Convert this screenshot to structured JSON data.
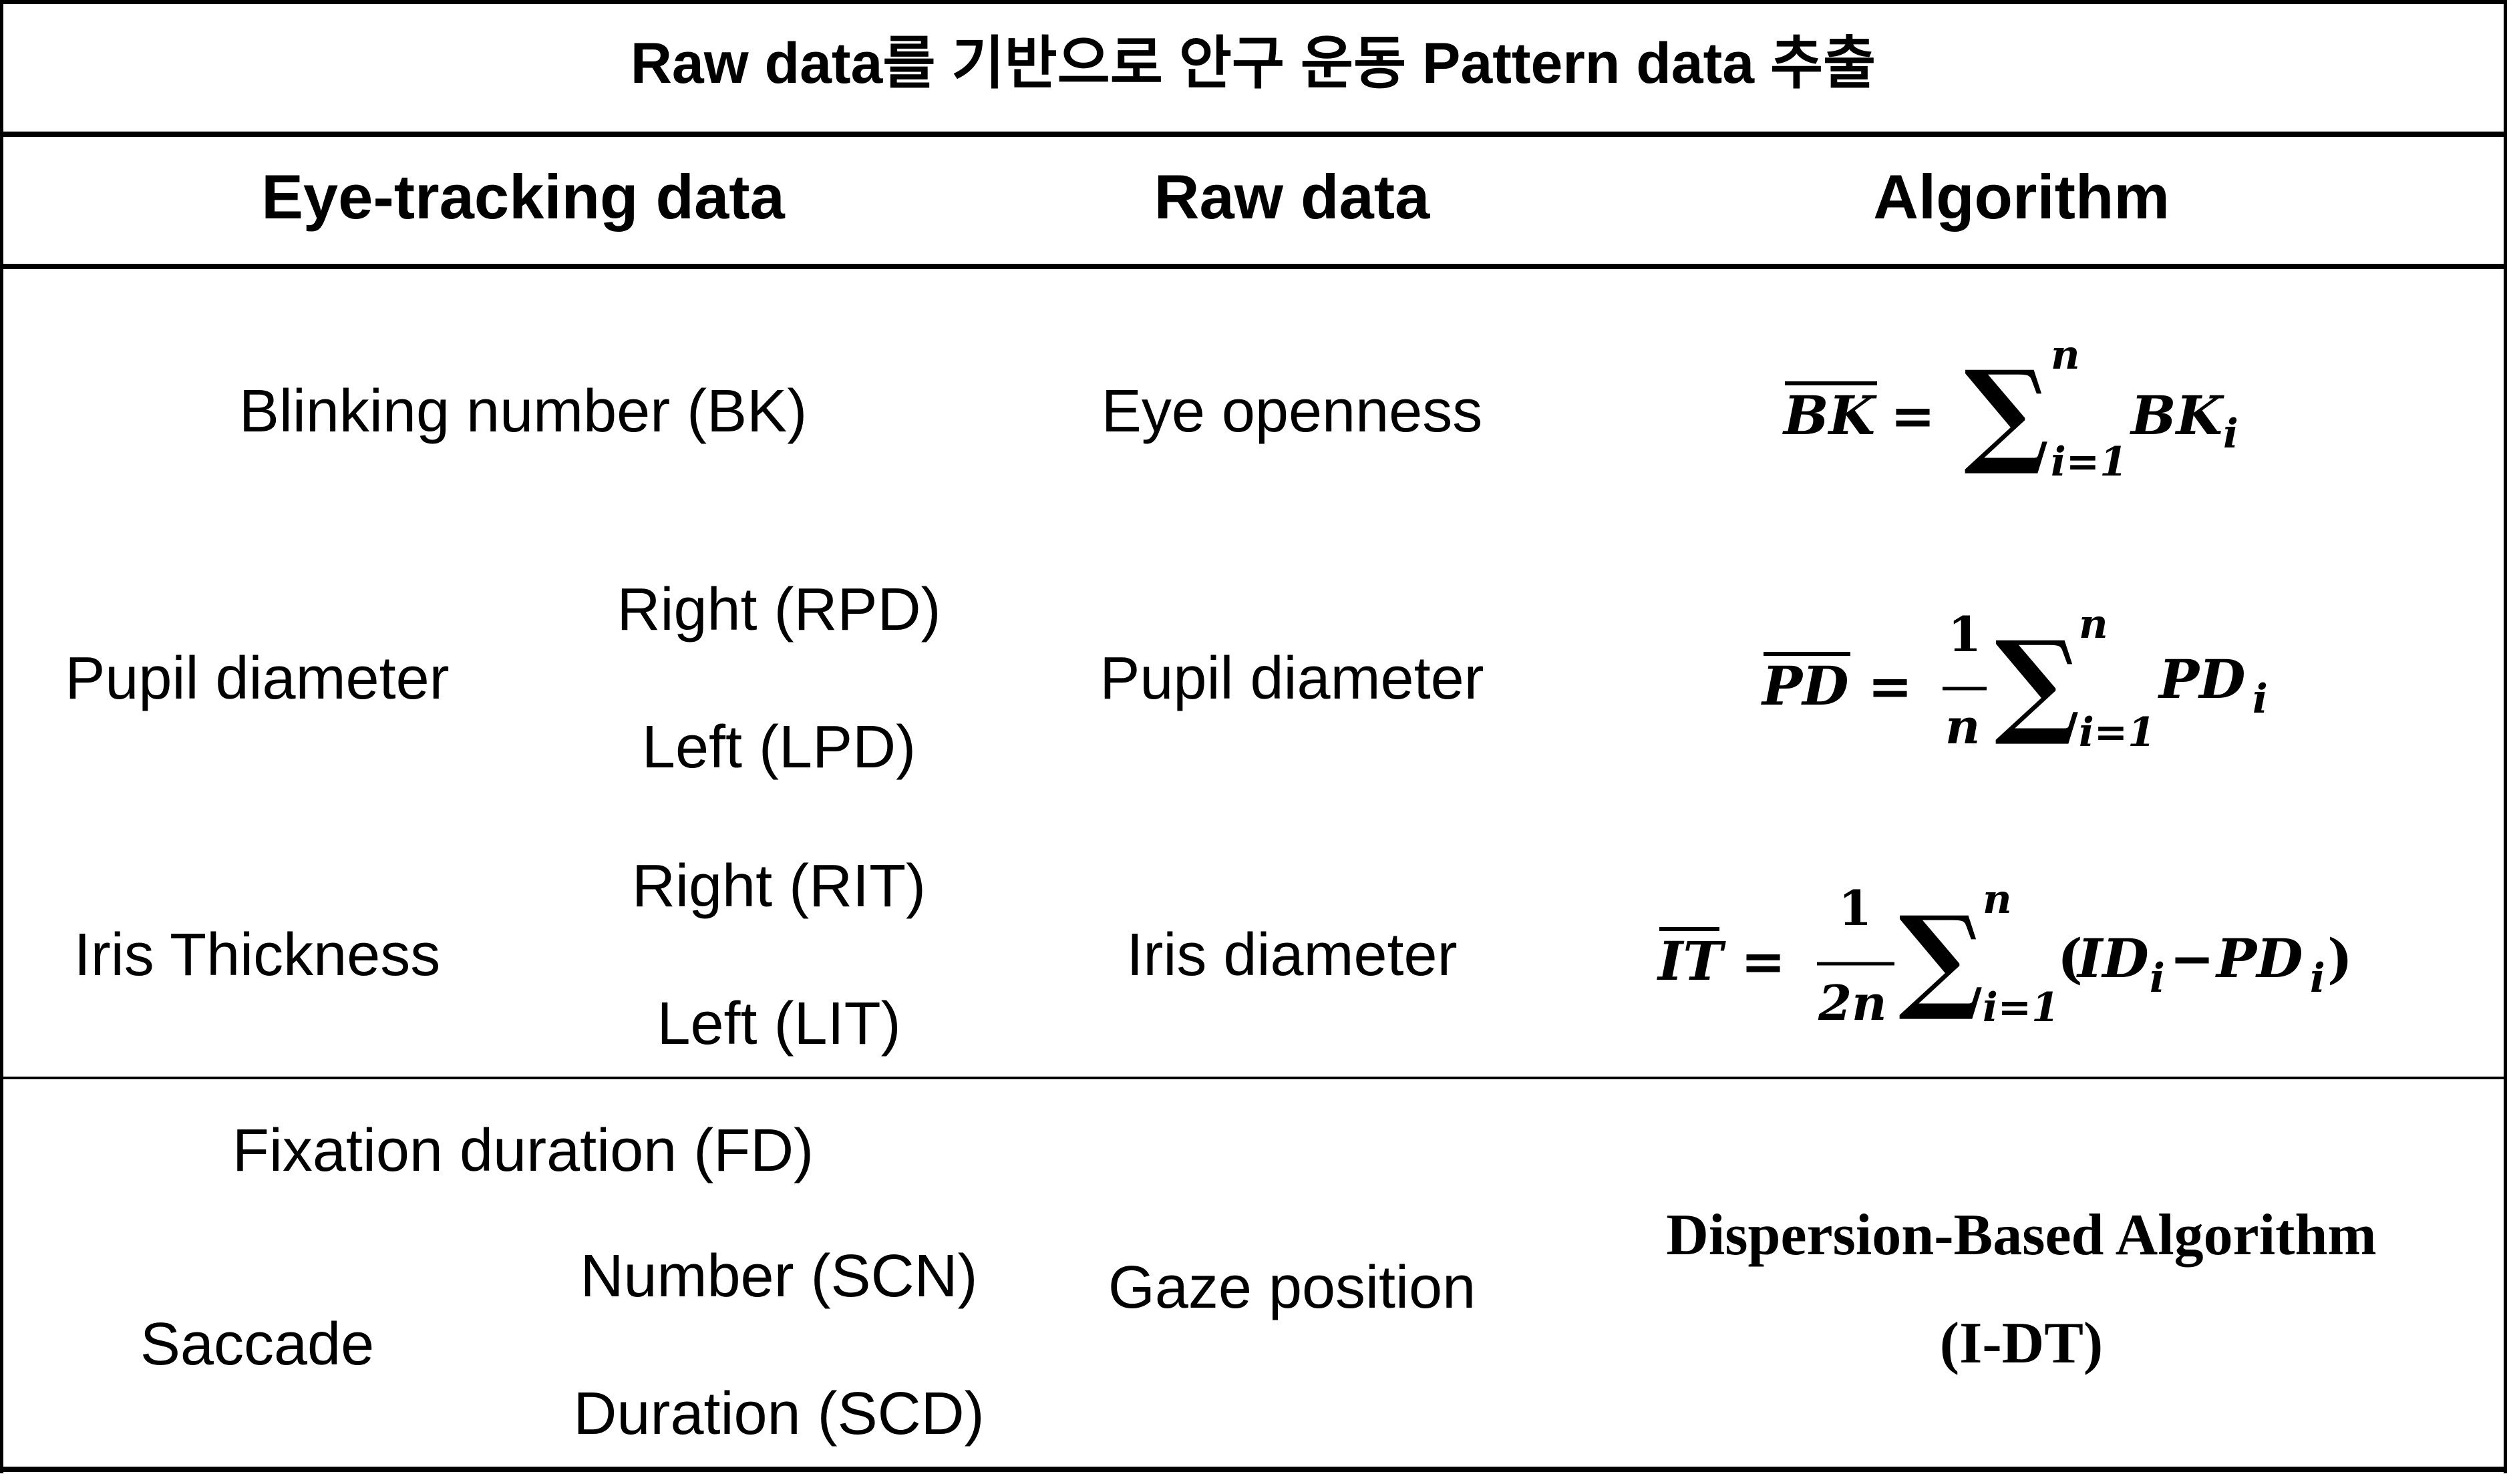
{
  "title": "Raw data를 기반으로 안구 운동 Pattern data 추출",
  "headers": {
    "eye_tracking": "Eye-tracking data",
    "raw_data": "Raw data",
    "algorithm": "Algorithm"
  },
  "rows": {
    "blinking": {
      "label": "Blinking number (BK)",
      "raw": "Eye openness",
      "formula": {
        "lhs": "BK",
        "equals": "=",
        "sum_sub": "i=1",
        "sum_sup": "n",
        "term": "BK",
        "term_sub": "i"
      }
    },
    "pupil": {
      "label": "Pupil diameter",
      "right": "Right (RPD)",
      "left": "Left (LPD)",
      "raw": "Pupil diameter",
      "formula": {
        "lhs": "PD",
        "equals": "=",
        "frac_num": "1",
        "frac_den": "n",
        "sum_sub": "i=1",
        "sum_sup": "n",
        "term": "PD",
        "term_sub": "i"
      }
    },
    "iris": {
      "label": "Iris Thickness",
      "right": "Right (RIT)",
      "left": "Left (LIT)",
      "raw": "Iris diameter",
      "formula": {
        "lhs": "IT",
        "equals": "=",
        "frac_num": "1",
        "frac_den": "2n",
        "sum_sub": "i=1",
        "sum_sup": "n",
        "paren_open": "(",
        "term1": "ID",
        "term1_sub": "i",
        "minus": "−",
        "term2": "PD",
        "term2_sub": "i",
        "paren_close": ")"
      }
    },
    "fixation": {
      "label": "Fixation duration (FD)"
    },
    "saccade": {
      "label": "Saccade",
      "number": "Number (SCN)",
      "duration": "Duration (SCD)",
      "raw": "Gaze position",
      "algorithm_line1": "Dispersion-Based Algorithm",
      "algorithm_line2": "(I-DT)"
    }
  }
}
